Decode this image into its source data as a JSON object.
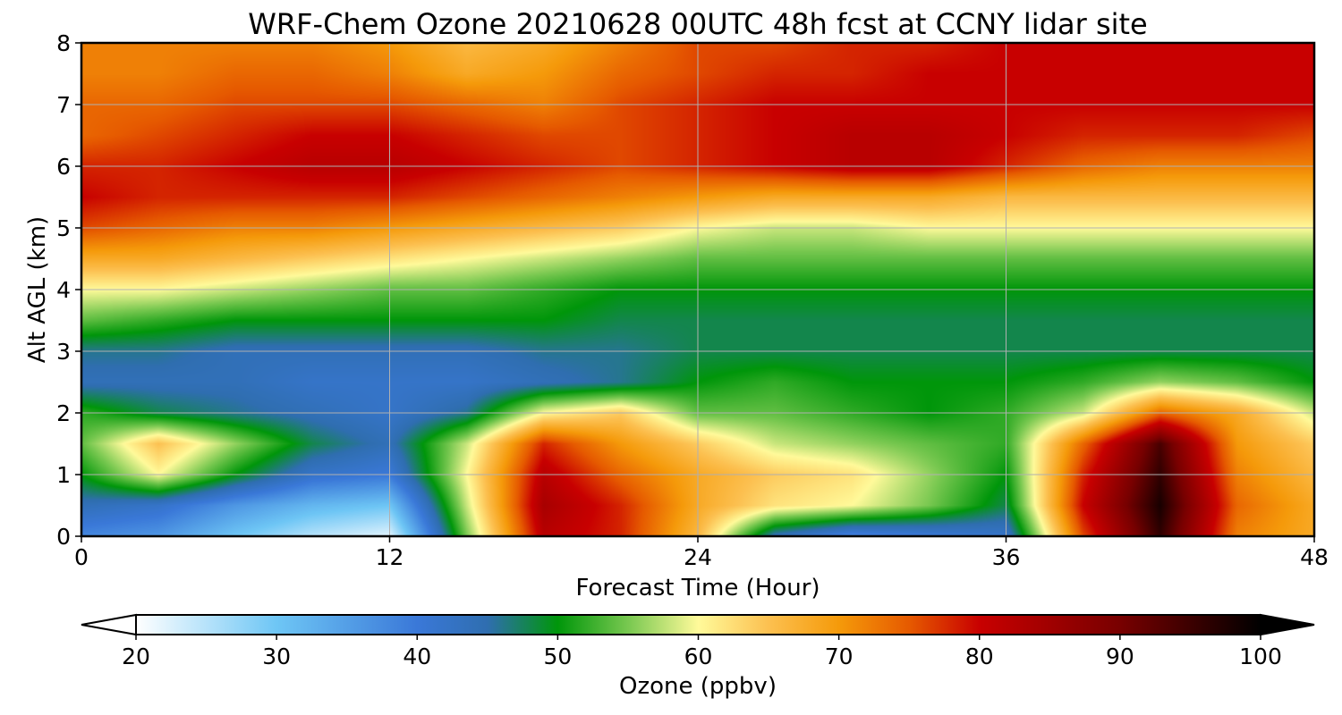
{
  "chart_data": {
    "type": "heatmap",
    "title": "WRF-Chem Ozone  20210628 00UTC 48h fcst at CCNY lidar site",
    "xlabel": "Forecast Time (Hour)",
    "ylabel": "Alt AGL (km)",
    "xlim": [
      0,
      48
    ],
    "ylim": [
      0,
      8
    ],
    "x_ticks": [
      "0",
      "12",
      "24",
      "36",
      "48"
    ],
    "y_ticks": [
      "0",
      "1",
      "2",
      "3",
      "4",
      "5",
      "6",
      "7",
      "8"
    ],
    "grid": true,
    "x": [
      0,
      3,
      6,
      9,
      12,
      15,
      18,
      21,
      24,
      27,
      30,
      33,
      36,
      39,
      42,
      45,
      48
    ],
    "y": [
      0,
      0.5,
      1,
      1.5,
      2,
      2.5,
      3,
      3.5,
      4,
      4.5,
      5,
      5.5,
      6,
      6.5,
      7,
      7.5,
      8
    ],
    "z": [
      [
        38,
        36,
        30,
        25,
        22,
        55,
        82,
        78,
        66,
        44,
        38,
        40,
        42,
        76,
        96,
        72,
        68
      ],
      [
        44,
        42,
        36,
        32,
        30,
        58,
        84,
        78,
        68,
        62,
        60,
        55,
        48,
        80,
        98,
        74,
        68
      ],
      [
        50,
        60,
        50,
        42,
        40,
        60,
        82,
        74,
        68,
        64,
        62,
        56,
        50,
        78,
        96,
        72,
        66
      ],
      [
        54,
        65,
        56,
        48,
        44,
        58,
        78,
        70,
        64,
        58,
        56,
        54,
        52,
        74,
        94,
        70,
        64
      ],
      [
        52,
        48,
        46,
        44,
        42,
        46,
        60,
        64,
        54,
        54,
        52,
        50,
        52,
        58,
        74,
        68,
        58
      ],
      [
        44,
        44,
        44,
        42,
        42,
        42,
        44,
        46,
        50,
        52,
        50,
        50,
        50,
        52,
        56,
        54,
        50
      ],
      [
        46,
        46,
        44,
        44,
        44,
        44,
        46,
        46,
        48,
        48,
        48,
        48,
        48,
        48,
        48,
        48,
        48
      ],
      [
        54,
        52,
        50,
        50,
        50,
        50,
        50,
        48,
        48,
        48,
        48,
        48,
        48,
        48,
        48,
        48,
        48
      ],
      [
        60,
        60,
        58,
        56,
        54,
        54,
        52,
        50,
        50,
        50,
        50,
        50,
        50,
        50,
        50,
        50,
        50
      ],
      [
        68,
        68,
        66,
        64,
        62,
        60,
        58,
        56,
        54,
        54,
        54,
        54,
        54,
        54,
        54,
        54,
        54
      ],
      [
        76,
        74,
        72,
        72,
        70,
        68,
        66,
        64,
        60,
        58,
        58,
        60,
        60,
        60,
        60,
        60,
        60
      ],
      [
        80,
        78,
        78,
        78,
        78,
        76,
        74,
        72,
        70,
        68,
        68,
        68,
        66,
        66,
        66,
        66,
        66
      ],
      [
        78,
        78,
        80,
        82,
        82,
        80,
        78,
        76,
        78,
        80,
        82,
        82,
        78,
        74,
        72,
        72,
        72
      ],
      [
        74,
        76,
        78,
        80,
        80,
        78,
        76,
        76,
        78,
        80,
        82,
        82,
        80,
        78,
        78,
        78,
        76
      ],
      [
        74,
        74,
        76,
        76,
        76,
        74,
        72,
        76,
        78,
        80,
        80,
        80,
        80,
        80,
        80,
        80,
        80
      ],
      [
        72,
        72,
        74,
        74,
        72,
        68,
        70,
        74,
        76,
        78,
        78,
        80,
        80,
        80,
        80,
        80,
        80
      ],
      [
        72,
        72,
        72,
        72,
        70,
        66,
        68,
        72,
        76,
        76,
        78,
        78,
        80,
        80,
        80,
        80,
        80
      ]
    ],
    "colorbar": {
      "label": "Ozone  (ppbv)",
      "min": 20,
      "max": 100,
      "ticks": [
        "20",
        "30",
        "40",
        "50",
        "60",
        "70",
        "80",
        "90",
        "100"
      ],
      "extend": "both",
      "stops": [
        {
          "value": 20,
          "color": "#ffffff"
        },
        {
          "value": 30,
          "color": "#6ec6f5"
        },
        {
          "value": 40,
          "color": "#3a78d8"
        },
        {
          "value": 45,
          "color": "#2f6eb0"
        },
        {
          "value": 50,
          "color": "#00960a"
        },
        {
          "value": 55,
          "color": "#78c850"
        },
        {
          "value": 60,
          "color": "#fffa9a"
        },
        {
          "value": 65,
          "color": "#fcc050"
        },
        {
          "value": 70,
          "color": "#f59a0a"
        },
        {
          "value": 75,
          "color": "#e65a00"
        },
        {
          "value": 80,
          "color": "#c80000"
        },
        {
          "value": 90,
          "color": "#780000"
        },
        {
          "value": 100,
          "color": "#000000"
        }
      ]
    }
  }
}
